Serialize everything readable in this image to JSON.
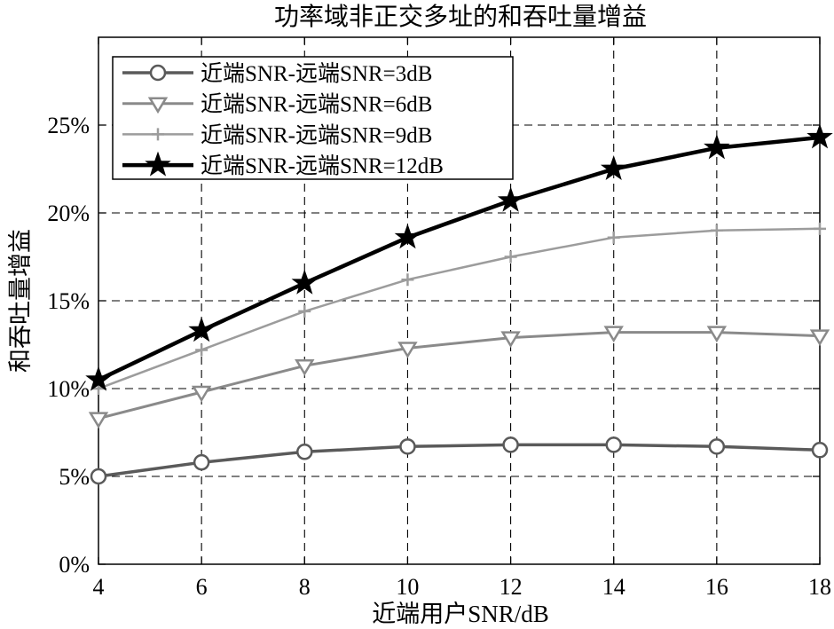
{
  "chart_data": {
    "type": "line",
    "title": "功率域非正交多址的和吞吐量增益",
    "xlabel": "近端用户SNR/dB",
    "ylabel": "和吞吐量增益",
    "x": [
      4,
      6,
      8,
      10,
      12,
      14,
      16,
      18
    ],
    "xtick_labels": [
      "4",
      "6",
      "8",
      "10",
      "12",
      "14",
      "16",
      "18"
    ],
    "xlim": [
      4,
      18
    ],
    "yticks": [
      0,
      5,
      10,
      15,
      20,
      25
    ],
    "ytick_labels": [
      "0%",
      "5%",
      "10%",
      "15%",
      "20%",
      "25%"
    ],
    "ylim": [
      0,
      30
    ],
    "grid": true,
    "legend_position": "top-left",
    "series": [
      {
        "name": "近端SNR-远端SNR=3dB",
        "marker_icon": "circle",
        "color": "#5a5a5a",
        "values": [
          5.0,
          5.8,
          6.4,
          6.7,
          6.8,
          6.8,
          6.7,
          6.5
        ]
      },
      {
        "name": "近端SNR-远端SNR=6dB",
        "marker_icon": "triangle-down",
        "color": "#8a8a8a",
        "values": [
          8.3,
          9.8,
          11.3,
          12.3,
          12.9,
          13.2,
          13.2,
          13.0
        ]
      },
      {
        "name": "近端SNR-远端SNR=9dB",
        "marker_icon": "plus",
        "color": "#9c9c9c",
        "values": [
          10.0,
          12.2,
          14.4,
          16.2,
          17.5,
          18.6,
          19.0,
          19.1
        ]
      },
      {
        "name": "近端SNR-远端SNR=12dB",
        "marker_icon": "star",
        "color": "#000000",
        "values": [
          10.5,
          13.3,
          16.0,
          18.6,
          20.7,
          22.5,
          23.7,
          24.3
        ]
      }
    ]
  }
}
